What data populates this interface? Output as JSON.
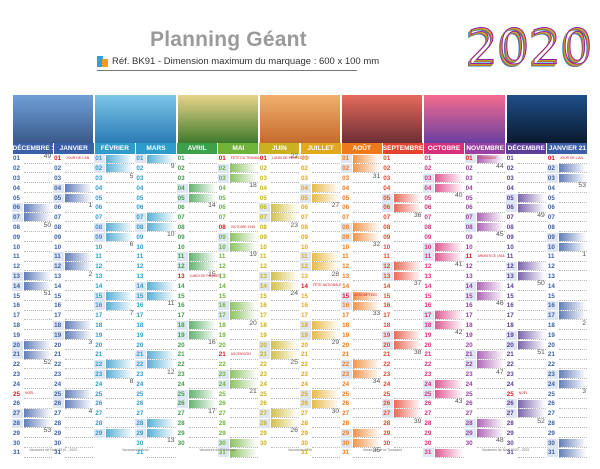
{
  "header": {
    "title": "Planning Géant",
    "reference": "Réf. BK91 - Dimension maximum du marquage : 600 x 100 mm",
    "year": "2020",
    "year_colors": [
      "#1e88c8",
      "#e53935",
      "#7cb342",
      "#fb8c00",
      "#8e24aa"
    ]
  },
  "photos": [
    {
      "name": "Taj Mahal",
      "colors": [
        "#6fa0d8",
        "#3a5a8a"
      ]
    },
    {
      "name": "Coastline",
      "colors": [
        "#7cc6e8",
        "#2b7bb5"
      ]
    },
    {
      "name": "Rice terraces",
      "colors": [
        "#e9d48a",
        "#3f7a2c"
      ]
    },
    {
      "name": "Desert dunes",
      "colors": [
        "#f2b06e",
        "#c56a2d"
      ]
    },
    {
      "name": "Venice canal",
      "colors": [
        "#e56b5d",
        "#6c2e35"
      ]
    },
    {
      "name": "Lavender field",
      "colors": [
        "#f36c8e",
        "#6a3fa0"
      ]
    },
    {
      "name": "Night rings",
      "colors": [
        "#1f4f8a",
        "#0a1a2e"
      ]
    }
  ],
  "months": [
    {
      "label": "DÉCEMBRE 19",
      "color": "#3b5fa8",
      "days": 31,
      "start": 0,
      "holidays": [
        {
          "day": 25,
          "label": "NOËL"
        }
      ]
    },
    {
      "label": "JANVIER",
      "color": "#3b5fa8",
      "days": 31,
      "start": 2,
      "holidays": [
        {
          "day": 1,
          "label": "JOUR DE L'AN"
        }
      ]
    },
    {
      "label": "FÉVRIER",
      "color": "#2e9ccb",
      "days": 29,
      "start": 5,
      "holidays": []
    },
    {
      "label": "MARS",
      "color": "#2e9ccb",
      "days": 31,
      "start": 6,
      "holidays": []
    },
    {
      "label": "AVRIL",
      "color": "#3da04a",
      "days": 30,
      "start": 2,
      "holidays": [
        {
          "day": 13,
          "label": "LUNDI DE PÂQUES"
        }
      ]
    },
    {
      "label": "MAI",
      "color": "#6fb43a",
      "days": 31,
      "start": 4,
      "holidays": [
        {
          "day": 1,
          "label": "FÊTE DU TRAVAIL"
        },
        {
          "day": 8,
          "label": "VICTOIRE 1945"
        },
        {
          "day": 21,
          "label": "ASCENSION"
        }
      ]
    },
    {
      "label": "JUIN",
      "color": "#c9b21e",
      "days": 30,
      "start": 0,
      "holidays": [
        {
          "day": 1,
          "label": "LUNDI DE PENTECÔTE"
        }
      ]
    },
    {
      "label": "JUILLET",
      "color": "#e1a91c",
      "days": 31,
      "start": 2,
      "holidays": [
        {
          "day": 14,
          "label": "FÊTE NATIONALE"
        }
      ]
    },
    {
      "label": "AOÛT",
      "color": "#ef7a1c",
      "days": 31,
      "start": 5,
      "holidays": [
        {
          "day": 15,
          "label": "ASSOMPTION"
        }
      ]
    },
    {
      "label": "SEPTEMBRE",
      "color": "#e5452f",
      "days": 30,
      "start": 1,
      "holidays": []
    },
    {
      "label": "OCTOBRE",
      "color": "#d8307a",
      "days": 31,
      "start": 3,
      "holidays": []
    },
    {
      "label": "NOVEMBRE",
      "color": "#9a3fa5",
      "days": 30,
      "start": 6,
      "holidays": [
        {
          "day": 1,
          "label": "TOUSSAINT"
        },
        {
          "day": 11,
          "label": "ARMISTICE 1918"
        }
      ]
    },
    {
      "label": "DÉCEMBRE",
      "color": "#5a3e98",
      "days": 31,
      "start": 1,
      "holidays": [
        {
          "day": 25,
          "label": "NOËL"
        }
      ]
    },
    {
      "label": "JANVIER 21",
      "color": "#3b5fa8",
      "days": 31,
      "start": 4,
      "holidays": [
        {
          "day": 1,
          "label": "JOUR DE L'AN"
        }
      ]
    }
  ],
  "footers": [
    "Vacances de Noël 2019 - 2020",
    "Vacances d'Hiver",
    "Vacances de Printemps",
    "Vacances d'Été",
    "Vacances de la Toussaint",
    "Vacances de Noël 2020 - 2021"
  ]
}
